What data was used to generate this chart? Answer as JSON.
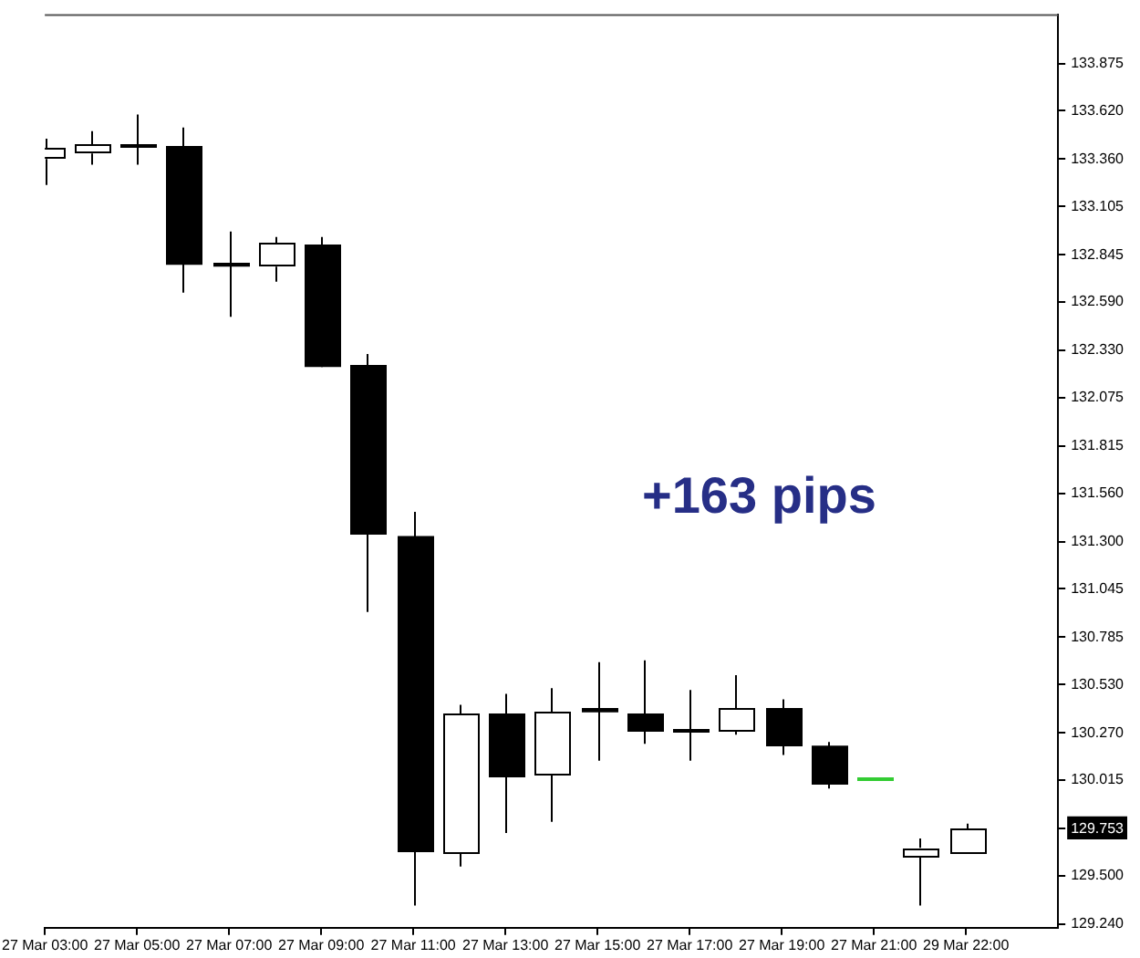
{
  "chart_data": {
    "type": "candlestick",
    "categories": [
      "27 Mar 03:00",
      null,
      "27 Mar 05:00",
      null,
      "27 Mar 07:00",
      null,
      "27 Mar 09:00",
      null,
      "27 Mar 11:00",
      null,
      "27 Mar 13:00",
      null,
      "27 Mar 15:00",
      null,
      "27 Mar 17:00",
      null,
      "27 Mar 19:00",
      null,
      "27 Mar 21:00",
      null,
      "29 Mar 22:00"
    ],
    "ohlc": [
      [
        133.36,
        133.47,
        133.22,
        133.42
      ],
      [
        133.39,
        133.51,
        133.33,
        133.44
      ],
      [
        133.43,
        133.6,
        133.33,
        133.43
      ],
      [
        133.43,
        133.53,
        132.64,
        132.79
      ],
      [
        132.8,
        132.97,
        132.51,
        132.78
      ],
      [
        132.78,
        132.94,
        132.7,
        132.91
      ],
      [
        132.9,
        132.94,
        132.24,
        132.24
      ],
      [
        132.25,
        132.31,
        130.92,
        131.34
      ],
      [
        131.33,
        131.46,
        129.34,
        129.63
      ],
      [
        129.62,
        130.42,
        129.55,
        130.37
      ],
      [
        130.37,
        130.48,
        129.73,
        130.03
      ],
      [
        130.04,
        130.51,
        129.79,
        130.38
      ],
      [
        130.4,
        130.65,
        130.12,
        130.38
      ],
      [
        130.37,
        130.66,
        130.21,
        130.28
      ],
      [
        130.28,
        130.5,
        130.12,
        130.28
      ],
      [
        130.28,
        130.58,
        130.26,
        130.4
      ],
      [
        130.4,
        130.45,
        130.15,
        130.2
      ],
      [
        130.2,
        130.22,
        129.97,
        129.99
      ],
      [
        130.02,
        130.02,
        130.02,
        130.02
      ],
      [
        129.6,
        129.7,
        129.34,
        129.65
      ],
      [
        129.62,
        129.78,
        129.62,
        129.75
      ]
    ],
    "colors": [
      "#ffffff",
      "#ffffff",
      "#000000",
      "#000000",
      "#000000",
      "#ffffff",
      "#000000",
      "#000000",
      "#000000",
      "#ffffff",
      "#000000",
      "#ffffff",
      "#000000",
      "#000000",
      "#000000",
      "#ffffff",
      "#000000",
      "#000000",
      "#33cc33",
      "#ffffff",
      "#ffffff"
    ],
    "ylim": [
      129.22,
      134.14
    ],
    "yticks": [
      133.875,
      {
        "value": 133.62,
        "label": "133.620"
      },
      {
        "value": 133.36,
        "label": "133.360"
      },
      133.105,
      132.845,
      {
        "value": 132.59,
        "label": "132.590"
      },
      {
        "value": 132.33,
        "label": "132.330"
      },
      132.075,
      131.815,
      {
        "value": 131.56,
        "label": "131.560"
      },
      {
        "value": 131.3,
        "label": "131.300"
      },
      131.045,
      130.785,
      {
        "value": 130.53,
        "label": "130.530"
      },
      {
        "value": 130.27,
        "label": "130.270"
      },
      130.015,
      129.753,
      {
        "value": 129.5,
        "label": "129.500"
      },
      {
        "value": 129.24,
        "label": "129.240"
      }
    ],
    "annotations": [
      "+163 pips"
    ]
  }
}
